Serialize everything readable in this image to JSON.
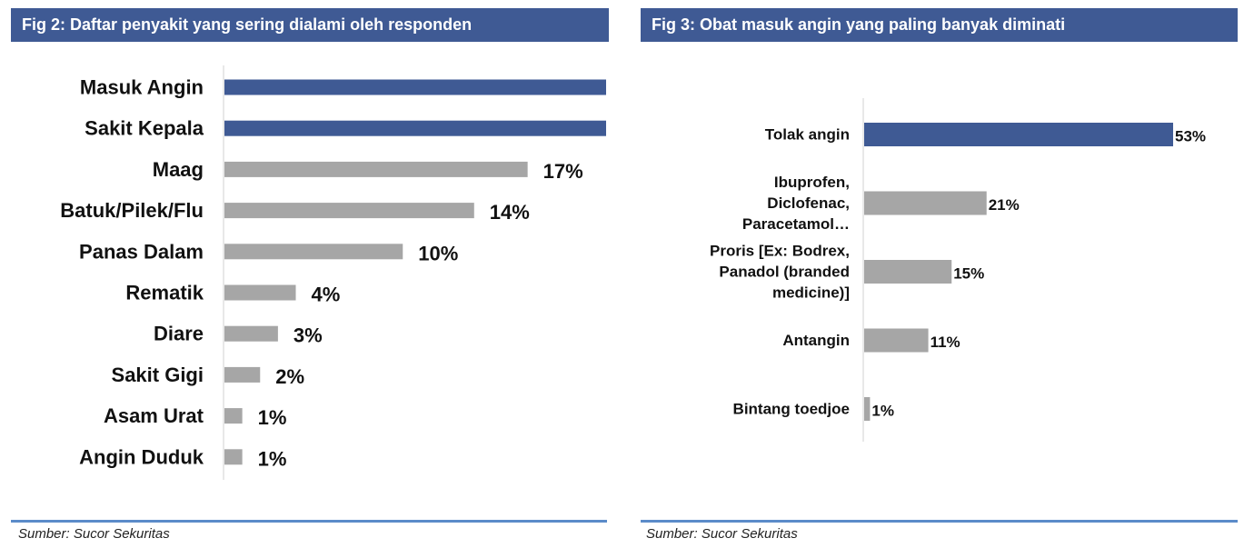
{
  "colors": {
    "title_bg": "#3f5a94",
    "highlight_bar": "#3f5a94",
    "bar": "#a6a6a6",
    "axis": "#d0d0d0",
    "source_rule": "#5b8bc9"
  },
  "source": "Sumber: Sucor Sekuritas",
  "chart_data": [
    {
      "type": "bar",
      "orientation": "horizontal",
      "title": "Fig 2: Daftar penyakit yang sering dialami oleh responden",
      "categories": [
        "Masuk Angin",
        "Sakit Kepala",
        "Maag",
        "Batuk/Pilek/Flu",
        "Panas Dalam",
        "Rematik",
        "Diare",
        "Sakit Gigi",
        "Asam Urat",
        "Angin Duduk"
      ],
      "values": [
        null,
        null,
        17,
        14,
        10,
        4,
        3,
        2,
        1,
        1
      ],
      "value_labels": [
        "",
        "",
        "17%",
        "14%",
        "10%",
        "4%",
        "3%",
        "2%",
        "1%",
        "1%"
      ],
      "highlighted": [
        true,
        true,
        false,
        false,
        false,
        false,
        false,
        false,
        false,
        false
      ],
      "xlim": [
        0,
        21.4
      ],
      "grid": false,
      "legend": "none"
    },
    {
      "type": "bar",
      "orientation": "horizontal",
      "title": "Fig 3: Obat masuk angin yang paling banyak diminati",
      "categories": [
        [
          "Tolak angin"
        ],
        [
          "Ibuprofen,",
          "Diclofenac,",
          "Paracetamol…"
        ],
        [
          "Proris [Ex: Bodrex,",
          "Panadol (branded",
          "medicine)]"
        ],
        [
          "Antangin"
        ],
        [
          "Bintang toedjoe"
        ]
      ],
      "values": [
        53,
        21,
        15,
        11,
        1
      ],
      "value_labels": [
        "53%",
        "21%",
        "15%",
        "11%",
        "1%"
      ],
      "highlighted": [
        true,
        false,
        false,
        false,
        false
      ],
      "xlim": [
        0,
        53
      ],
      "grid": false,
      "legend": "none"
    }
  ]
}
